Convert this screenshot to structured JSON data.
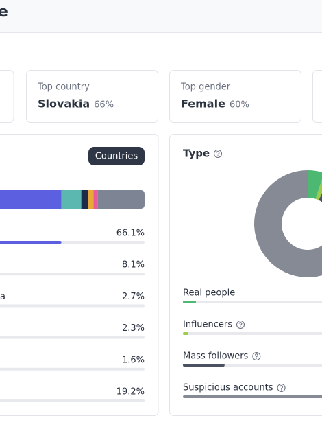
{
  "header": {
    "title": "e"
  },
  "stats": [
    {
      "label": "Top country",
      "value": "Slovakia",
      "share": "66%"
    },
    {
      "label": "Top gender",
      "value": "Female",
      "share": "60%"
    }
  ],
  "countries": {
    "button": "Countries",
    "rows": [
      {
        "label": null,
        "value": 66.1,
        "value_label": "66.1%",
        "color": "#5b5fe0"
      },
      {
        "label": null,
        "value": 8.1,
        "value_label": "8.1%",
        "color": "#5bb8b0"
      },
      {
        "label": "a",
        "value": 2.7,
        "value_label": "2.7%",
        "color": "#1e2a4a"
      },
      {
        "label": null,
        "value": 2.3,
        "value_label": "2.3%",
        "color": "#e8a93b"
      },
      {
        "label": null,
        "value": 1.6,
        "value_label": "1.6%",
        "color": "#e85b9a"
      },
      {
        "label": null,
        "value": 19.2,
        "value_label": "19.2%",
        "color": "#7d8494"
      }
    ]
  },
  "type_chart": {
    "title": "Type",
    "type": "donut",
    "items": [
      {
        "name": "Real people",
        "value": 5,
        "color": "#4cb872"
      },
      {
        "name": "Influencers",
        "value": 2,
        "color": "#9ccc4a"
      },
      {
        "name": "Mass followers",
        "value": 16,
        "color": "#4a5160"
      },
      {
        "name": "Suspicious accounts",
        "value": 77,
        "color": "#858a95"
      }
    ]
  }
}
